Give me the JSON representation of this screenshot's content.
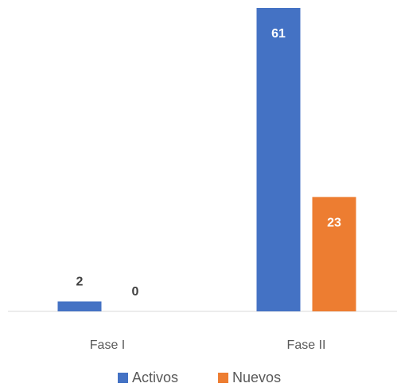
{
  "chart_data": {
    "type": "bar",
    "categories": [
      "Fase I",
      "Fase II"
    ],
    "series": [
      {
        "name": "Activos",
        "color": "#4472c4",
        "values": [
          2,
          61
        ]
      },
      {
        "name": "Nuevos",
        "color": "#ed7d31",
        "values": [
          0,
          23
        ]
      }
    ],
    "ylim": [
      0,
      61
    ]
  }
}
